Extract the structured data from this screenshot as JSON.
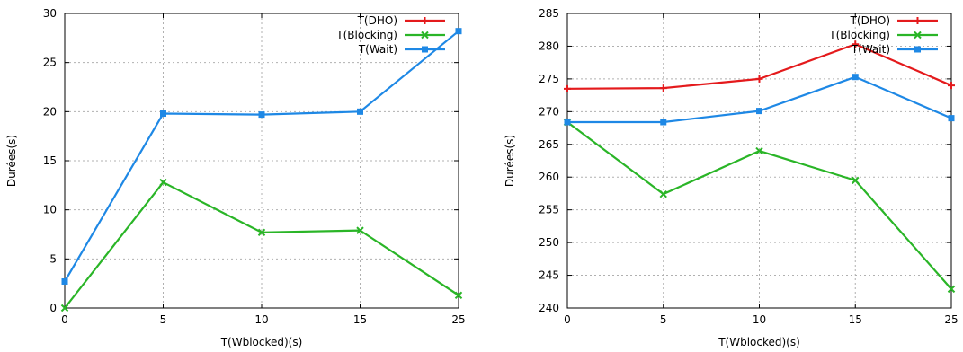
{
  "chart_data": [
    {
      "type": "line",
      "xlabel": "T(Wblocked)(s)",
      "ylabel": "Durées(s)",
      "x": [
        0,
        5,
        10,
        15,
        25
      ],
      "x_ticks": [
        "0",
        "5",
        "10",
        "15",
        "25"
      ],
      "ylim": [
        0,
        30
      ],
      "y_ticks": [
        0,
        5,
        10,
        15,
        20,
        25,
        30
      ],
      "grid": true,
      "legend_position": "top-right",
      "series": [
        {
          "name": "T(DHO)",
          "color": "#e41a1c",
          "marker": "plus",
          "values": null
        },
        {
          "name": "T(Blocking)",
          "color": "#2ab527",
          "marker": "x",
          "values": [
            0,
            12.8,
            7.7,
            7.9,
            1.3
          ]
        },
        {
          "name": "T(Wait)",
          "color": "#1e88e5",
          "marker": "square",
          "values": [
            2.7,
            19.8,
            19.7,
            20.0,
            28.2
          ]
        }
      ]
    },
    {
      "type": "line",
      "xlabel": "T(Wblocked)(s)",
      "ylabel": "Durées(s)",
      "x": [
        0,
        5,
        10,
        15,
        25
      ],
      "x_ticks": [
        "0",
        "5",
        "10",
        "15",
        "25"
      ],
      "ylim": [
        240,
        285
      ],
      "y_ticks": [
        240,
        245,
        250,
        255,
        260,
        265,
        270,
        275,
        280,
        285
      ],
      "grid": true,
      "legend_position": "top-right",
      "series": [
        {
          "name": "T(DHO)",
          "color": "#e41a1c",
          "marker": "plus",
          "values": [
            273.5,
            273.6,
            275.0,
            280.3,
            274.0
          ]
        },
        {
          "name": "T(Blocking)",
          "color": "#2ab527",
          "marker": "x",
          "values": [
            268.4,
            257.4,
            264.0,
            259.5,
            242.9
          ]
        },
        {
          "name": "T(Wait)",
          "color": "#1e88e5",
          "marker": "square",
          "values": [
            268.4,
            268.4,
            270.1,
            275.3,
            269.0
          ]
        }
      ]
    }
  ]
}
